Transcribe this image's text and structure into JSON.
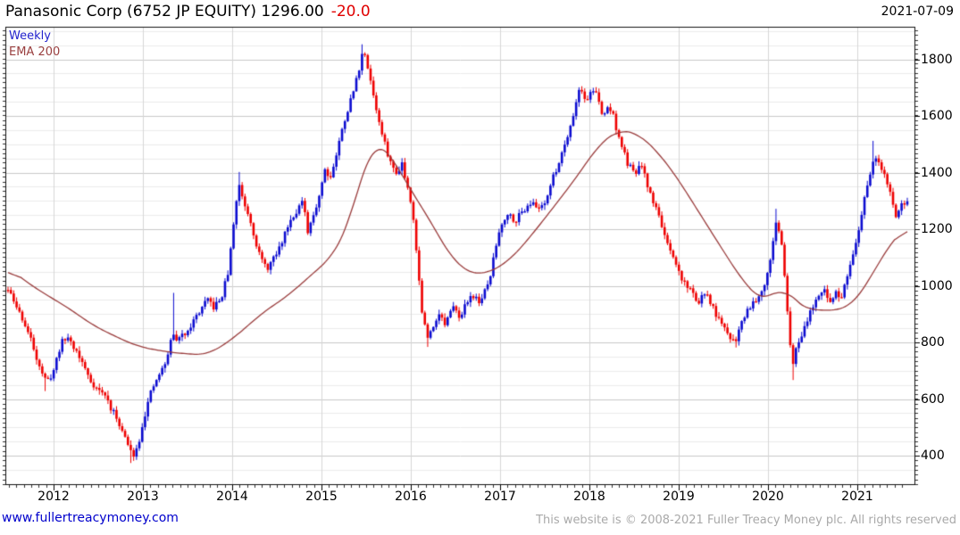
{
  "header": {
    "title": "Panasonic Corp (6752 JP EQUITY) 1296.00",
    "change": "-20.0",
    "date": "2021-07-09"
  },
  "legend": {
    "series_label": "Weekly",
    "ema_label": "EMA 200"
  },
  "footer": {
    "site": "www.fullertreacymoney.com",
    "copyright": "This website is © 2008-2021 Fuller Treacy Money plc. All rights reserved"
  },
  "chart_data": {
    "type": "candlestick",
    "title": "Panasonic Corp (6752 JP EQUITY)",
    "last_price": 1296.0,
    "change": -20.0,
    "timeframe": "Weekly",
    "overlay": "EMA 200",
    "x_axis": {
      "start": 2011.49,
      "end": 2021.56,
      "year_ticks": [
        2012,
        2013,
        2014,
        2015,
        2016,
        2017,
        2018,
        2019,
        2020,
        2021
      ]
    },
    "y_axis": {
      "ticks": [
        400,
        600,
        800,
        1000,
        1200,
        1400,
        1600,
        1800
      ],
      "minor_step": 50,
      "top_price": 1915,
      "bottom_price": 300
    },
    "colors": {
      "up": "#0b0bd0",
      "down": "#ee0000",
      "ema": "#993b3b",
      "grid_major": "#c8c8c8",
      "grid_minor": "#ebebeb",
      "grid_vertical": "#d6d6d6",
      "border": "#111111"
    },
    "series": {
      "name": "Weekly close path (read from chart, year-fraction vs price)",
      "close_path": [
        [
          2011.49,
          985
        ],
        [
          2011.56,
          940
        ],
        [
          2011.65,
          885
        ],
        [
          2011.75,
          805
        ],
        [
          2011.83,
          730
        ],
        [
          2011.92,
          655
        ],
        [
          2012.0,
          700
        ],
        [
          2012.08,
          795
        ],
        [
          2012.16,
          820
        ],
        [
          2012.25,
          772
        ],
        [
          2012.33,
          722
        ],
        [
          2012.42,
          662
        ],
        [
          2012.5,
          632
        ],
        [
          2012.58,
          612
        ],
        [
          2012.65,
          562
        ],
        [
          2012.73,
          520
        ],
        [
          2012.8,
          462
        ],
        [
          2012.88,
          400
        ],
        [
          2012.94,
          430
        ],
        [
          2013.0,
          520
        ],
        [
          2013.08,
          612
        ],
        [
          2013.17,
          680
        ],
        [
          2013.25,
          722
        ],
        [
          2013.33,
          828
        ],
        [
          2013.4,
          808
        ],
        [
          2013.48,
          838
        ],
        [
          2013.56,
          872
        ],
        [
          2013.65,
          918
        ],
        [
          2013.73,
          948
        ],
        [
          2013.8,
          922
        ],
        [
          2013.88,
          958
        ],
        [
          2013.96,
          1055
        ],
        [
          2014.04,
          1290
        ],
        [
          2014.08,
          1355
        ],
        [
          2014.13,
          1298
        ],
        [
          2014.21,
          1228
        ],
        [
          2014.29,
          1122
        ],
        [
          2014.38,
          1058
        ],
        [
          2014.46,
          1092
        ],
        [
          2014.54,
          1140
        ],
        [
          2014.63,
          1222
        ],
        [
          2014.71,
          1262
        ],
        [
          2014.79,
          1298
        ],
        [
          2014.85,
          1178
        ],
        [
          2014.9,
          1240
        ],
        [
          2014.96,
          1302
        ],
        [
          2015.04,
          1415
        ],
        [
          2015.1,
          1382
        ],
        [
          2015.17,
          1468
        ],
        [
          2015.25,
          1578
        ],
        [
          2015.33,
          1658
        ],
        [
          2015.4,
          1738
        ],
        [
          2015.46,
          1828
        ],
        [
          2015.52,
          1775
        ],
        [
          2015.58,
          1678
        ],
        [
          2015.65,
          1568
        ],
        [
          2015.71,
          1498
        ],
        [
          2015.77,
          1440
        ],
        [
          2015.83,
          1392
        ],
        [
          2015.9,
          1438
        ],
        [
          2015.96,
          1352
        ],
        [
          2016.02,
          1278
        ],
        [
          2016.08,
          1058
        ],
        [
          2016.13,
          898
        ],
        [
          2016.19,
          812
        ],
        [
          2016.25,
          858
        ],
        [
          2016.31,
          908
        ],
        [
          2016.38,
          862
        ],
        [
          2016.44,
          898
        ],
        [
          2016.5,
          932
        ],
        [
          2016.56,
          882
        ],
        [
          2016.63,
          948
        ],
        [
          2016.69,
          972
        ],
        [
          2016.75,
          942
        ],
        [
          2016.81,
          962
        ],
        [
          2016.88,
          1018
        ],
        [
          2016.94,
          1118
        ],
        [
          2017.0,
          1208
        ],
        [
          2017.08,
          1258
        ],
        [
          2017.17,
          1232
        ],
        [
          2017.25,
          1262
        ],
        [
          2017.33,
          1298
        ],
        [
          2017.42,
          1272
        ],
        [
          2017.5,
          1298
        ],
        [
          2017.58,
          1368
        ],
        [
          2017.67,
          1448
        ],
        [
          2017.75,
          1528
        ],
        [
          2017.83,
          1618
        ],
        [
          2017.9,
          1715
        ],
        [
          2017.96,
          1638
        ],
        [
          2018.02,
          1698
        ],
        [
          2018.08,
          1678
        ],
        [
          2018.15,
          1592
        ],
        [
          2018.21,
          1638
        ],
        [
          2018.27,
          1598
        ],
        [
          2018.33,
          1522
        ],
        [
          2018.42,
          1438
        ],
        [
          2018.5,
          1392
        ],
        [
          2018.58,
          1428
        ],
        [
          2018.65,
          1352
        ],
        [
          2018.73,
          1288
        ],
        [
          2018.81,
          1218
        ],
        [
          2018.88,
          1132
        ],
        [
          2018.96,
          1078
        ],
        [
          2019.04,
          1022
        ],
        [
          2019.13,
          988
        ],
        [
          2019.21,
          942
        ],
        [
          2019.29,
          972
        ],
        [
          2019.38,
          928
        ],
        [
          2019.46,
          868
        ],
        [
          2019.54,
          832
        ],
        [
          2019.63,
          802
        ],
        [
          2019.71,
          878
        ],
        [
          2019.79,
          928
        ],
        [
          2019.88,
          958
        ],
        [
          2019.96,
          1008
        ],
        [
          2020.04,
          1118
        ],
        [
          2020.1,
          1238
        ],
        [
          2020.15,
          1148
        ],
        [
          2020.21,
          948
        ],
        [
          2020.27,
          722
        ],
        [
          2020.33,
          788
        ],
        [
          2020.4,
          852
        ],
        [
          2020.48,
          918
        ],
        [
          2020.56,
          948
        ],
        [
          2020.63,
          988
        ],
        [
          2020.69,
          938
        ],
        [
          2020.75,
          982
        ],
        [
          2020.81,
          945
        ],
        [
          2020.88,
          1018
        ],
        [
          2020.94,
          1088
        ],
        [
          2021.0,
          1158
        ],
        [
          2021.06,
          1278
        ],
        [
          2021.13,
          1388
        ],
        [
          2021.19,
          1448
        ],
        [
          2021.25,
          1422
        ],
        [
          2021.31,
          1392
        ],
        [
          2021.38,
          1322
        ],
        [
          2021.44,
          1232
        ],
        [
          2021.5,
          1288
        ],
        [
          2021.56,
          1296
        ]
      ],
      "extreme_wicks": [
        [
          2011.92,
          628,
          "low"
        ],
        [
          2012.88,
          374,
          "low"
        ],
        [
          2013.33,
          975,
          "high"
        ],
        [
          2014.08,
          1402,
          "high"
        ],
        [
          2015.46,
          1853,
          "high"
        ],
        [
          2016.19,
          784,
          "low"
        ],
        [
          2019.63,
          782,
          "low"
        ],
        [
          2020.1,
          1272,
          "high"
        ],
        [
          2020.27,
          667,
          "low"
        ],
        [
          2021.19,
          1512,
          "high"
        ]
      ]
    },
    "ema": {
      "name": "EMA 200",
      "path": [
        [
          2011.49,
          1065
        ],
        [
          2011.7,
          1012
        ],
        [
          2011.93,
          966
        ],
        [
          2012.2,
          915
        ],
        [
          2012.43,
          862
        ],
        [
          2012.7,
          820
        ],
        [
          2012.93,
          787
        ],
        [
          2013.2,
          770
        ],
        [
          2013.45,
          760
        ],
        [
          2013.73,
          756
        ],
        [
          2014.03,
          818
        ],
        [
          2014.33,
          903
        ],
        [
          2014.63,
          966
        ],
        [
          2014.93,
          1051
        ],
        [
          2015.13,
          1105
        ],
        [
          2015.3,
          1210
        ],
        [
          2015.45,
          1390
        ],
        [
          2015.58,
          1512
        ],
        [
          2015.7,
          1488
        ],
        [
          2015.82,
          1442
        ],
        [
          2016.0,
          1332
        ],
        [
          2016.13,
          1280
        ],
        [
          2016.35,
          1152
        ],
        [
          2016.5,
          1082
        ],
        [
          2016.65,
          1044
        ],
        [
          2016.8,
          1040
        ],
        [
          2016.95,
          1058
        ],
        [
          2017.1,
          1088
        ],
        [
          2017.3,
          1158
        ],
        [
          2017.6,
          1278
        ],
        [
          2017.9,
          1402
        ],
        [
          2018.1,
          1498
        ],
        [
          2018.33,
          1552
        ],
        [
          2018.55,
          1538
        ],
        [
          2018.75,
          1478
        ],
        [
          2018.95,
          1398
        ],
        [
          2019.15,
          1298
        ],
        [
          2019.35,
          1198
        ],
        [
          2019.55,
          1098
        ],
        [
          2019.75,
          1002
        ],
        [
          2019.95,
          942
        ],
        [
          2020.1,
          978
        ],
        [
          2020.17,
          1012
        ],
        [
          2020.28,
          948
        ],
        [
          2020.42,
          918
        ],
        [
          2020.6,
          913
        ],
        [
          2020.8,
          913
        ],
        [
          2020.95,
          935
        ],
        [
          2021.1,
          1000
        ],
        [
          2021.25,
          1090
        ],
        [
          2021.4,
          1160
        ],
        [
          2021.5,
          1196
        ],
        [
          2021.56,
          1215
        ]
      ]
    }
  }
}
